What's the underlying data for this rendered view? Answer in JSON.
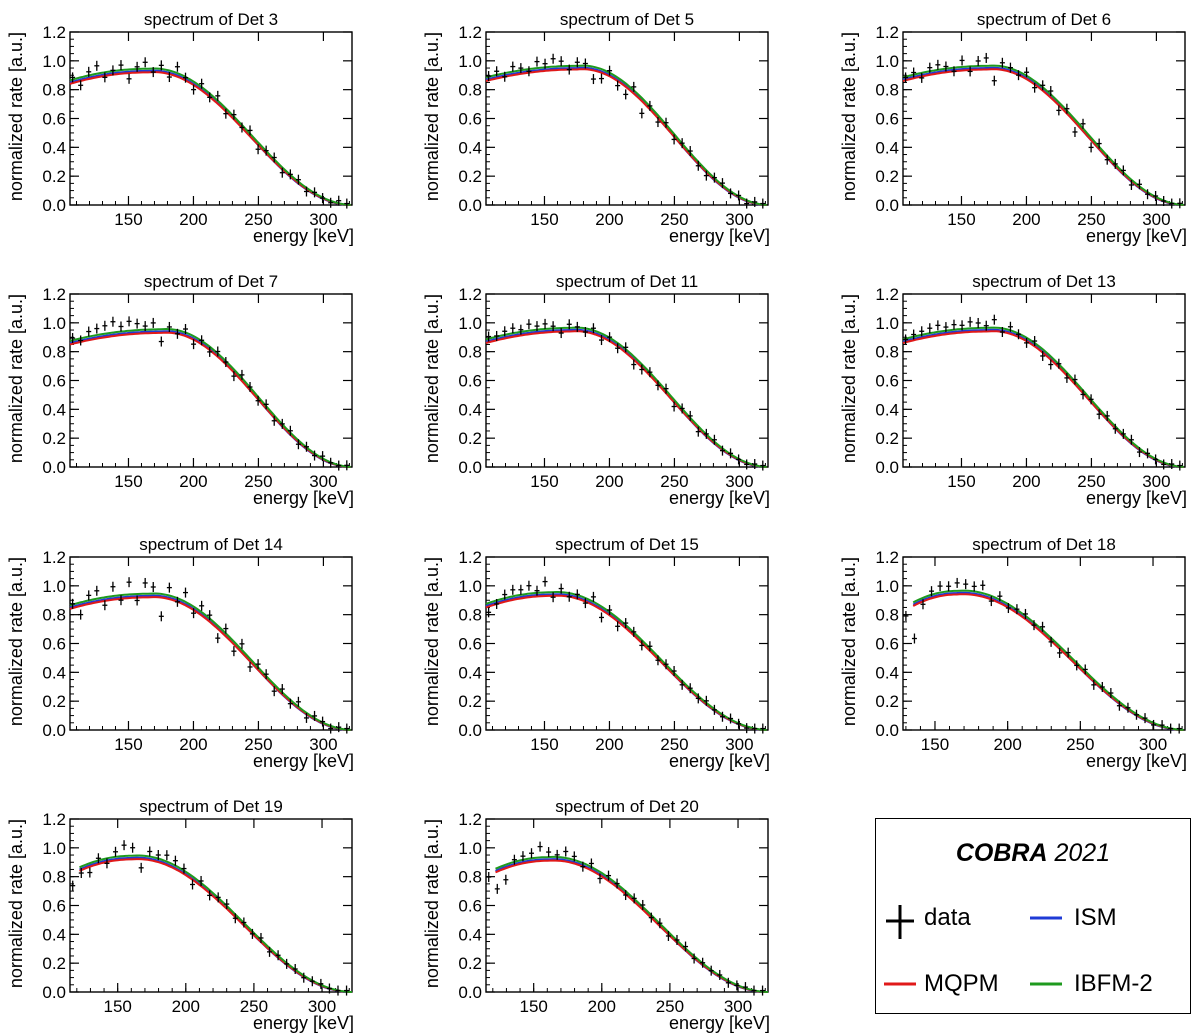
{
  "chart_data": [
    {
      "type": "line",
      "title": "spectrum of Det 3",
      "xlabel": "energy [keV]",
      "ylabel": "normalized rate [a.u.]",
      "xlim": [
        105,
        322
      ],
      "ylim": [
        0,
        1.2
      ],
      "xticks": [
        150,
        200,
        250,
        300
      ],
      "yticks": [
        0.0,
        0.2,
        0.4,
        0.6,
        0.8,
        1.0,
        1.2
      ],
      "model_start": 105,
      "model_peak": 165,
      "model_peak_value": 0.93,
      "data_noise": [
        0.02,
        -0.05,
        0.03,
        0.06,
        -0.03,
        0.01,
        0.04,
        -0.06,
        0.02,
        0.05,
        -0.02,
        0.03,
        -0.04,
        0.05,
        0.0,
        -0.05,
        0.03,
        -0.02,
        0.04,
        -0.03,
        0.02,
        -0.01,
        0.03,
        -0.04,
        0.01,
        0.02,
        -0.03,
        0.01,
        0.02,
        -0.02,
        0.01,
        0.0,
        -0.01,
        0.02,
        -0.01
      ]
    },
    {
      "type": "line",
      "title": "spectrum of Det 5",
      "xlabel": "energy [keV]",
      "ylabel": "normalized rate [a.u.]",
      "xlim": [
        105,
        322
      ],
      "ylim": [
        0,
        1.2
      ],
      "xticks": [
        150,
        200,
        250,
        300
      ],
      "yticks": [
        0.0,
        0.2,
        0.4,
        0.6,
        0.8,
        1.0,
        1.2
      ],
      "model_start": 105,
      "model_peak": 175,
      "model_peak_value": 0.95,
      "data_noise": [
        0.01,
        0.03,
        -0.02,
        0.04,
        0.02,
        -0.01,
        0.05,
        0.03,
        0.06,
        0.04,
        -0.02,
        0.03,
        0.02,
        -0.08,
        -0.06,
        0.02,
        -0.05,
        -0.07,
        0.03,
        -0.1,
        0.01,
        -0.04,
        0.02,
        -0.03,
        0.01,
        0.02,
        -0.02,
        -0.03,
        0.01,
        0.02,
        -0.01,
        0.01,
        -0.02,
        0.01,
        0.0
      ]
    },
    {
      "type": "line",
      "title": "spectrum of Det 6",
      "xlabel": "energy [keV]",
      "ylabel": "normalized rate [a.u.]",
      "xlim": [
        105,
        322
      ],
      "ylim": [
        0,
        1.2
      ],
      "xticks": [
        150,
        200,
        250,
        300
      ],
      "yticks": [
        0.0,
        0.2,
        0.4,
        0.6,
        0.8,
        1.0,
        1.2
      ],
      "model_start": 105,
      "model_peak": 170,
      "model_peak_value": 0.95,
      "data_noise": [
        0.0,
        0.02,
        -0.03,
        0.03,
        0.04,
        0.02,
        -0.02,
        0.05,
        -0.03,
        0.04,
        0.06,
        -0.1,
        0.03,
        0.01,
        -0.02,
        0.03,
        -0.04,
        0.02,
        0.03,
        -0.05,
        0.02,
        -0.08,
        0.04,
        -0.06,
        0.03,
        -0.02,
        0.01,
        0.02,
        -0.03,
        0.02,
        -0.01,
        0.01,
        0.0,
        -0.01,
        0.01
      ]
    },
    {
      "type": "line",
      "title": "spectrum of Det 7",
      "xlabel": "energy [keV]",
      "ylabel": "normalized rate [a.u.]",
      "xlim": [
        105,
        322
      ],
      "ylim": [
        0,
        1.2
      ],
      "xticks": [
        150,
        200,
        250,
        300
      ],
      "yticks": [
        0.0,
        0.2,
        0.4,
        0.6,
        0.8,
        1.0,
        1.2
      ],
      "model_start": 105,
      "model_peak": 175,
      "model_peak_value": 0.94,
      "data_noise": [
        0.02,
        -0.01,
        0.04,
        0.05,
        0.06,
        0.08,
        0.04,
        0.07,
        0.05,
        0.03,
        0.05,
        -0.08,
        0.02,
        -0.02,
        0.03,
        -0.05,
        0.01,
        -0.03,
        0.02,
        0.0,
        -0.04,
        0.03,
        0.01,
        -0.02,
        0.02,
        -0.03,
        0.01,
        0.02,
        -0.02,
        0.01,
        -0.01,
        0.02,
        0.0,
        -0.01,
        0.01
      ]
    },
    {
      "type": "line",
      "title": "spectrum of Det 11",
      "xlabel": "energy [keV]",
      "ylabel": "normalized rate [a.u.]",
      "xlim": [
        105,
        322
      ],
      "ylim": [
        0,
        1.2
      ],
      "xticks": [
        150,
        200,
        250,
        300
      ],
      "yticks": [
        0.0,
        0.2,
        0.4,
        0.6,
        0.8,
        1.0,
        1.2
      ],
      "model_start": 105,
      "model_peak": 170,
      "model_peak_value": 0.95,
      "data_noise": [
        0.02,
        0.01,
        0.03,
        0.04,
        0.02,
        0.05,
        0.03,
        0.04,
        0.02,
        -0.03,
        0.03,
        0.01,
        -0.02,
        0.02,
        -0.04,
        0.01,
        -0.03,
        0.02,
        -0.05,
        -0.03,
        0.01,
        -0.02,
        0.02,
        -0.04,
        0.01,
        0.02,
        -0.03,
        0.01,
        0.02,
        -0.01,
        0.01,
        0.0,
        -0.01,
        0.01,
        0.0
      ]
    },
    {
      "type": "line",
      "title": "spectrum of Det 13",
      "xlabel": "energy [keV]",
      "ylabel": "normalized rate [a.u.]",
      "xlim": [
        105,
        322
      ],
      "ylim": [
        0,
        1.2
      ],
      "xticks": [
        150,
        200,
        250,
        300
      ],
      "yticks": [
        0.0,
        0.2,
        0.4,
        0.6,
        0.8,
        1.0,
        1.2
      ],
      "model_start": 105,
      "model_peak": 170,
      "model_peak_value": 0.95,
      "data_noise": [
        0.0,
        0.02,
        0.03,
        0.04,
        0.05,
        0.03,
        0.04,
        0.03,
        0.05,
        0.04,
        0.02,
        0.06,
        -0.02,
        0.03,
        0.0,
        -0.03,
        0.02,
        -0.04,
        -0.05,
        0.01,
        -0.03,
        0.02,
        -0.02,
        0.01,
        -0.03,
        0.02,
        -0.01,
        0.01,
        0.02,
        -0.02,
        0.01,
        0.0,
        -0.01,
        0.01,
        0.0
      ]
    },
    {
      "type": "line",
      "title": "spectrum of Det 14",
      "xlabel": "energy [keV]",
      "ylabel": "normalized rate [a.u.]",
      "xlim": [
        105,
        322
      ],
      "ylim": [
        0,
        1.2
      ],
      "xticks": [
        150,
        200,
        250,
        300
      ],
      "yticks": [
        0.0,
        0.2,
        0.4,
        0.6,
        0.8,
        1.0,
        1.2
      ],
      "model_start": 105,
      "model_peak": 165,
      "model_peak_value": 0.93,
      "data_noise": [
        0.01,
        -0.08,
        0.04,
        0.06,
        -0.05,
        0.07,
        -0.03,
        0.09,
        -0.04,
        0.08,
        0.05,
        -0.15,
        0.06,
        -0.02,
        0.07,
        -0.04,
        0.05,
        0.03,
        -0.08,
        0.04,
        -0.06,
        0.05,
        -0.05,
        0.03,
        0.02,
        -0.04,
        0.03,
        -0.02,
        0.04,
        -0.03,
        0.02,
        0.01,
        -0.02,
        0.01,
        0.0
      ]
    },
    {
      "type": "line",
      "title": "spectrum of Det 15",
      "xlabel": "energy [keV]",
      "ylabel": "normalized rate [a.u.]",
      "xlim": [
        105,
        322
      ],
      "ylim": [
        0,
        1.2
      ],
      "xticks": [
        150,
        200,
        250,
        300
      ],
      "yticks": [
        0.0,
        0.2,
        0.4,
        0.6,
        0.8,
        1.0,
        1.2
      ],
      "model_start": 105,
      "model_peak": 155,
      "model_peak_value": 0.94,
      "data_noise": [
        -0.06,
        -0.02,
        0.03,
        0.05,
        0.04,
        0.06,
        0.02,
        0.08,
        -0.03,
        0.03,
        -0.02,
        0.01,
        -0.03,
        0.04,
        -0.07,
        0.02,
        -0.05,
        0.02,
        0.01,
        -0.03,
        0.02,
        -0.02,
        0.01,
        0.02,
        -0.02,
        0.01,
        -0.01,
        0.02,
        0.0,
        -0.01,
        0.01,
        0.0,
        -0.01,
        0.0,
        0.0
      ]
    },
    {
      "type": "line",
      "title": "spectrum of Det 18",
      "xlabel": "energy [keV]",
      "ylabel": "normalized rate [a.u.]",
      "xlim": [
        128,
        322
      ],
      "ylim": [
        0,
        1.2
      ],
      "xticks": [
        150,
        200,
        250,
        300
      ],
      "yticks": [
        0.0,
        0.2,
        0.4,
        0.6,
        0.8,
        1.0,
        1.2
      ],
      "model_start": 135,
      "model_peak": 165,
      "model_peak_value": 0.95,
      "data_noise": [
        -0.06,
        -0.25,
        -0.04,
        0.03,
        0.05,
        0.04,
        0.06,
        0.05,
        0.04,
        0.06,
        -0.03,
        0.03,
        -0.02,
        0.01,
        0.02,
        -0.01,
        0.03,
        -0.02,
        -0.04,
        0.02,
        -0.01,
        0.02,
        -0.03,
        0.01,
        0.02,
        -0.02,
        0.01,
        0.0,
        0.01,
        -0.01,
        0.01,
        0.0,
        0.0
      ]
    },
    {
      "type": "line",
      "title": "spectrum of Det 19",
      "xlabel": "energy [keV]",
      "ylabel": "normalized rate [a.u.]",
      "xlim": [
        115,
        322
      ],
      "ylim": [
        0,
        1.2
      ],
      "xticks": [
        150,
        200,
        250,
        300
      ],
      "yticks": [
        0.0,
        0.2,
        0.4,
        0.6,
        0.8,
        1.0,
        1.2
      ],
      "model_start": 122,
      "model_peak": 160,
      "model_peak_value": 0.93,
      "data_noise": [
        -0.1,
        -0.04,
        -0.06,
        0.02,
        -0.03,
        0.04,
        0.08,
        0.06,
        -0.08,
        0.04,
        0.03,
        0.05,
        0.04,
        0.02,
        -0.05,
        0.02,
        -0.03,
        0.01,
        0.02,
        -0.02,
        0.01,
        -0.01,
        0.02,
        -0.02,
        0.01,
        0.0,
        0.01,
        -0.01,
        0.0,
        0.01,
        0.0,
        0.0,
        0.0
      ]
    },
    {
      "type": "line",
      "title": "spectrum of Det 20",
      "xlabel": "energy [keV]",
      "ylabel": "normalized rate [a.u.]",
      "xlim": [
        115,
        322
      ],
      "ylim": [
        0,
        1.2
      ],
      "xticks": [
        150,
        200,
        250,
        300
      ],
      "yticks": [
        0.0,
        0.2,
        0.4,
        0.6,
        0.8,
        1.0,
        1.2
      ],
      "model_start": 122,
      "model_peak": 160,
      "model_peak_value": 0.92,
      "data_noise": [
        -0.03,
        -0.14,
        -0.1,
        0.02,
        0.03,
        0.04,
        0.08,
        0.04,
        0.02,
        0.05,
        0.03,
        -0.02,
        0.03,
        -0.04,
        0.02,
        0.01,
        -0.02,
        0.01,
        0.02,
        -0.01,
        0.01,
        -0.02,
        0.01,
        0.02,
        -0.01,
        0.01,
        0.0,
        0.01,
        -0.01,
        0.0,
        0.01,
        0.0,
        0.0
      ]
    }
  ],
  "legend": {
    "title_bold": "COBRA",
    "title_year": "2021",
    "items": [
      {
        "label": "data",
        "color": "#000000",
        "kind": "cross"
      },
      {
        "label": "ISM",
        "color": "#1f3bd6",
        "kind": "line"
      },
      {
        "label": "MQPM",
        "color": "#e01919",
        "kind": "line"
      },
      {
        "label": "IBFM-2",
        "color": "#1e9a1e",
        "kind": "line"
      }
    ]
  }
}
